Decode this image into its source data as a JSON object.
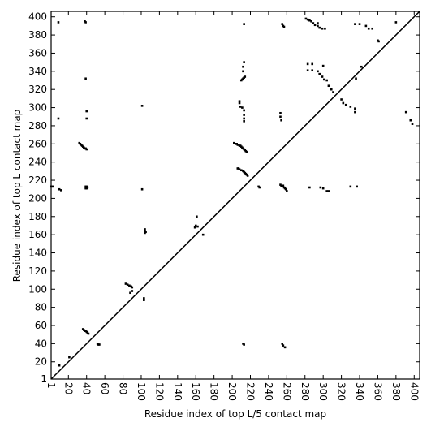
{
  "chart_data": {
    "type": "scatter",
    "xlabel": "Residue index of top L/5 contact map",
    "ylabel": "Residue index of top L contact map",
    "xlim": [
      1,
      406
    ],
    "ylim": [
      1,
      406
    ],
    "xticks": [
      1,
      20,
      40,
      60,
      80,
      100,
      120,
      140,
      160,
      180,
      200,
      220,
      240,
      260,
      280,
      300,
      320,
      340,
      360,
      380,
      400
    ],
    "yticks": [
      1,
      20,
      40,
      60,
      80,
      100,
      120,
      140,
      160,
      180,
      200,
      220,
      240,
      260,
      280,
      300,
      320,
      340,
      360,
      380,
      400
    ],
    "diagonal": true,
    "color": "#000000",
    "x": [
      38,
      39,
      9,
      101,
      9,
      40,
      40,
      39,
      32,
      33,
      34,
      35,
      36,
      37,
      38,
      39,
      40,
      39,
      40,
      41,
      39,
      40,
      1,
      3,
      10,
      12,
      101,
      104,
      104,
      105,
      104,
      83,
      85,
      87,
      89,
      90,
      90,
      88,
      103,
      103,
      36,
      37,
      38,
      39,
      40,
      41,
      42,
      52,
      53,
      54,
      21,
      10,
      159,
      160,
      162,
      161,
      168,
      202,
      204,
      205,
      206,
      207,
      208,
      209,
      210,
      211,
      212,
      213,
      214,
      215,
      216,
      206,
      207,
      208,
      210,
      212,
      213,
      214,
      215,
      216,
      217,
      229,
      230,
      253,
      254,
      256,
      257,
      258,
      259,
      260,
      210,
      211,
      212,
      213,
      214,
      212,
      212,
      213,
      208,
      208,
      209,
      211,
      213,
      213,
      213,
      213,
      213,
      255,
      256,
      257,
      253,
      253,
      254,
      281,
      283,
      285,
      287,
      289,
      291,
      294,
      296,
      299,
      302,
      294,
      283,
      283,
      288,
      288,
      294,
      296,
      299,
      301,
      304,
      306,
      309,
      311,
      300,
      320,
      322,
      325,
      330,
      335,
      335,
      297,
      300,
      304,
      306,
      285,
      330,
      337,
      335,
      340,
      347,
      350,
      354,
      360,
      361,
      342,
      336,
      391,
      396,
      398,
      380,
      213,
      212,
      255,
      256,
      258
    ],
    "y": [
      395,
      394,
      394,
      302,
      288,
      296,
      288,
      332,
      261,
      260,
      259,
      258,
      257,
      256,
      255,
      255,
      254,
      213,
      213,
      212,
      211,
      211,
      213,
      213,
      210,
      209,
      210,
      166,
      164,
      163,
      162,
      106,
      105,
      104,
      103,
      102,
      98,
      96,
      90,
      88,
      56,
      55,
      54,
      54,
      53,
      52,
      51,
      40,
      39,
      39,
      25,
      16,
      168,
      170,
      169,
      180,
      160,
      261,
      260,
      260,
      259,
      259,
      258,
      258,
      257,
      256,
      255,
      254,
      253,
      252,
      251,
      233,
      233,
      232,
      231,
      230,
      229,
      228,
      227,
      226,
      225,
      213,
      212,
      215,
      214,
      214,
      212,
      211,
      210,
      208,
      330,
      331,
      332,
      333,
      334,
      340,
      345,
      350,
      307,
      305,
      301,
      300,
      297,
      292,
      288,
      285,
      392,
      392,
      390,
      389,
      294,
      290,
      286,
      398,
      397,
      396,
      395,
      393,
      391,
      390,
      388,
      387,
      387,
      393,
      348,
      341,
      348,
      341,
      340,
      337,
      334,
      331,
      330,
      324,
      320,
      317,
      346,
      309,
      305,
      303,
      301,
      299,
      295,
      212,
      211,
      208,
      208,
      212,
      213,
      213,
      392,
      392,
      390,
      387,
      387,
      374,
      373,
      345,
      332,
      295,
      286,
      282,
      394,
      39,
      40,
      40,
      38,
      36
    ]
  }
}
